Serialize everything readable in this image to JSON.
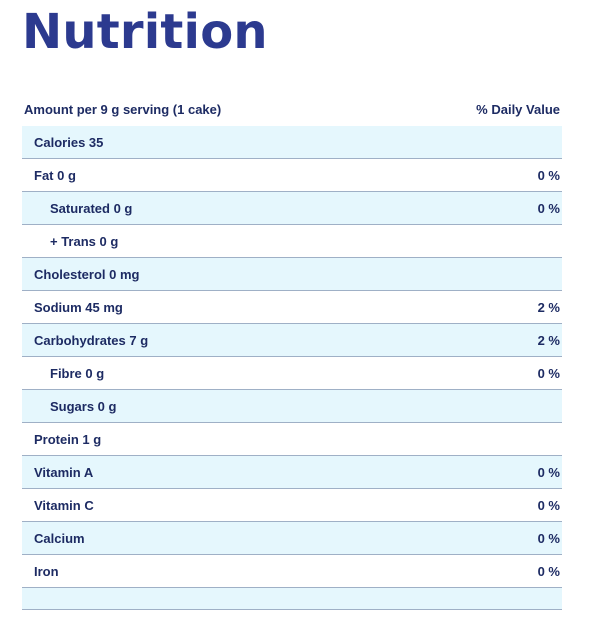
{
  "page": {
    "title": "Nutrition"
  },
  "header": {
    "amount": "Amount per 9 g serving (1 cake)",
    "daily_value": "% Daily Value"
  },
  "rows": [
    {
      "label": "Calories 35",
      "dv": ""
    },
    {
      "label": "Fat 0 g",
      "dv": "0 %"
    },
    {
      "label": "Saturated 0 g",
      "dv": "0 %"
    },
    {
      "label": "+ Trans 0 g",
      "dv": ""
    },
    {
      "label": "Cholesterol 0 mg",
      "dv": ""
    },
    {
      "label": "Sodium 45 mg",
      "dv": "2 %"
    },
    {
      "label": "Carbohydrates 7 g",
      "dv": "2 %"
    },
    {
      "label": "Fibre 0 g",
      "dv": "0 %"
    },
    {
      "label": "Sugars 0 g",
      "dv": ""
    },
    {
      "label": "Protein 1 g",
      "dv": ""
    },
    {
      "label": "Vitamin A",
      "dv": "0 %"
    },
    {
      "label": "Vitamin C",
      "dv": "0 %"
    },
    {
      "label": "Calcium",
      "dv": "0 %"
    },
    {
      "label": "Iron",
      "dv": "0 %"
    }
  ],
  "colors": {
    "title": "#2c3a8f",
    "text": "#1d2b63",
    "row_shade": "#e5f7fd",
    "divider": "#9fb0c6"
  }
}
